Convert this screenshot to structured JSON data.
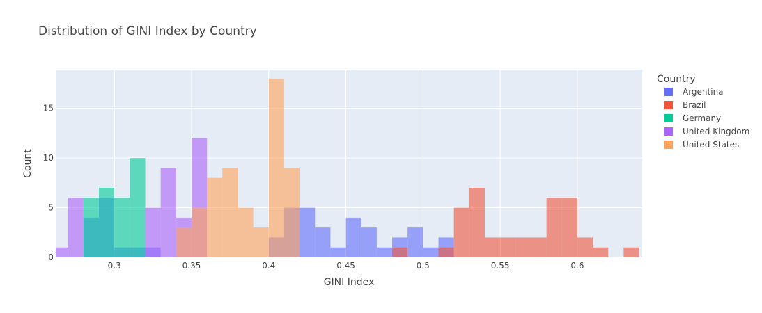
{
  "chart_data": {
    "type": "histogram",
    "title": "Distribution of GINI Index by Country",
    "xlabel": "GINI Index",
    "ylabel": "Count",
    "xlim": [
      0.262,
      0.642
    ],
    "ylim": [
      0,
      18.9
    ],
    "bin_width": 0.01,
    "barmode": "overlay",
    "opacity": 0.6,
    "x_ticks": [
      0.3,
      0.35,
      0.4,
      0.45,
      0.5,
      0.55,
      0.6
    ],
    "x_tick_labels": [
      "0.3",
      "0.35",
      "0.4",
      "0.45",
      "0.5",
      "0.55",
      "0.6"
    ],
    "y_ticks": [
      0,
      5,
      10,
      15
    ],
    "y_tick_labels": [
      "0",
      "5",
      "10",
      "15"
    ],
    "grid": true,
    "legend_title": "Country",
    "legend_position": "right",
    "background_color": "#e5ecf6",
    "series": [
      {
        "name": "Argentina",
        "color": "#636efa",
        "bins": [
          {
            "x0": 0.28,
            "count": 4
          },
          {
            "x0": 0.29,
            "count": 6
          },
          {
            "x0": 0.3,
            "count": 1
          },
          {
            "x0": 0.31,
            "count": 1
          },
          {
            "x0": 0.32,
            "count": 1
          },
          {
            "x0": 0.4,
            "count": 2
          },
          {
            "x0": 0.41,
            "count": 5
          },
          {
            "x0": 0.42,
            "count": 5
          },
          {
            "x0": 0.43,
            "count": 3
          },
          {
            "x0": 0.44,
            "count": 1
          },
          {
            "x0": 0.45,
            "count": 4
          },
          {
            "x0": 0.46,
            "count": 3
          },
          {
            "x0": 0.47,
            "count": 1
          },
          {
            "x0": 0.48,
            "count": 2
          },
          {
            "x0": 0.49,
            "count": 3
          },
          {
            "x0": 0.5,
            "count": 1
          },
          {
            "x0": 0.51,
            "count": 2
          }
        ]
      },
      {
        "name": "Brazil",
        "color": "#ef553b",
        "bins": [
          {
            "x0": 0.48,
            "count": 1
          },
          {
            "x0": 0.51,
            "count": 1
          },
          {
            "x0": 0.52,
            "count": 5
          },
          {
            "x0": 0.53,
            "count": 7
          },
          {
            "x0": 0.54,
            "count": 2
          },
          {
            "x0": 0.55,
            "count": 2
          },
          {
            "x0": 0.56,
            "count": 2
          },
          {
            "x0": 0.57,
            "count": 2
          },
          {
            "x0": 0.58,
            "count": 6
          },
          {
            "x0": 0.59,
            "count": 6
          },
          {
            "x0": 0.6,
            "count": 2
          },
          {
            "x0": 0.61,
            "count": 1
          },
          {
            "x0": 0.63,
            "count": 1
          }
        ]
      },
      {
        "name": "Germany",
        "color": "#00cc96",
        "bins": [
          {
            "x0": 0.28,
            "count": 6
          },
          {
            "x0": 0.29,
            "count": 7
          },
          {
            "x0": 0.3,
            "count": 6
          },
          {
            "x0": 0.31,
            "count": 10
          }
        ]
      },
      {
        "name": "United Kingdom",
        "color": "#ab63fa",
        "bins": [
          {
            "x0": 0.26,
            "count": 1
          },
          {
            "x0": 0.27,
            "count": 6
          },
          {
            "x0": 0.32,
            "count": 5
          },
          {
            "x0": 0.33,
            "count": 9
          },
          {
            "x0": 0.34,
            "count": 4
          },
          {
            "x0": 0.35,
            "count": 12
          }
        ]
      },
      {
        "name": "United States",
        "color": "#ffa15a",
        "bins": [
          {
            "x0": 0.34,
            "count": 3
          },
          {
            "x0": 0.35,
            "count": 5
          },
          {
            "x0": 0.36,
            "count": 8
          },
          {
            "x0": 0.37,
            "count": 9
          },
          {
            "x0": 0.38,
            "count": 5
          },
          {
            "x0": 0.39,
            "count": 3
          },
          {
            "x0": 0.4,
            "count": 18
          },
          {
            "x0": 0.41,
            "count": 9
          }
        ]
      }
    ]
  }
}
